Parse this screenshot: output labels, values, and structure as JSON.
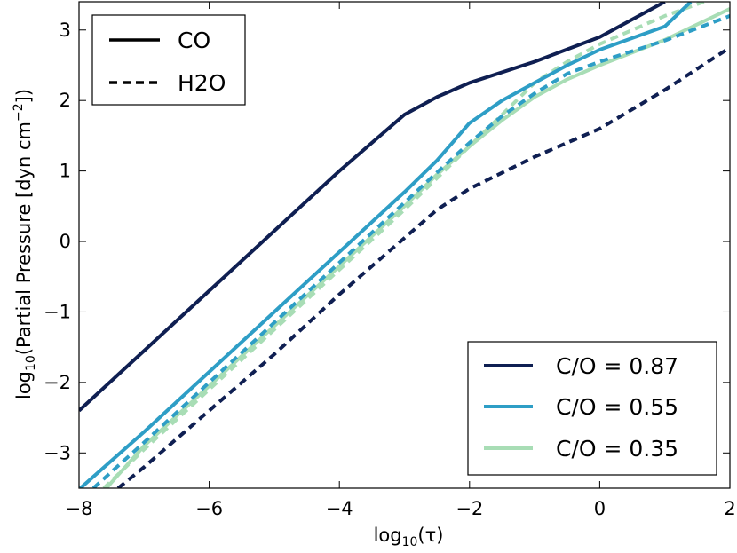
{
  "chart_data": {
    "type": "line",
    "xlabel": {
      "base": "log",
      "sub": "10",
      "arg": "(τ)"
    },
    "ylabel": {
      "pre": "log",
      "sub": "10",
      "mid": "(Partial Pressure [dyn cm",
      "sup": "−2",
      "post": "])"
    },
    "xlim": [
      -8,
      2
    ],
    "ylim": [
      -3.5,
      3.4
    ],
    "xticks": [
      -8,
      -6,
      -4,
      -2,
      0,
      2
    ],
    "xtick_labels": [
      "−8",
      "−6",
      "−4",
      "−2",
      "0",
      "2"
    ],
    "yticks": [
      -3,
      -2,
      -1,
      0,
      1,
      2,
      3
    ],
    "ytick_labels": [
      "−3",
      "−2",
      "−1",
      "0",
      "1",
      "2",
      "3"
    ],
    "species_legend": [
      {
        "label": "CO",
        "style": "solid"
      },
      {
        "label": "H2O",
        "style": "dashed"
      }
    ],
    "ratio_legend": [
      {
        "label": "C/O = 0.87",
        "color": "#0f1f52"
      },
      {
        "label": "C/O = 0.55",
        "color": "#2e9ec6"
      },
      {
        "label": "C/O = 0.35",
        "color": "#a8ddb5"
      }
    ],
    "series": [
      {
        "name": "CO, C/O = 0.35",
        "species": "CO",
        "style": "solid",
        "color": "#a8ddb5",
        "points": [
          [
            -7.58,
            -3.5
          ],
          [
            -7,
            -2.9
          ],
          [
            -6,
            -2.05
          ],
          [
            -5,
            -1.2
          ],
          [
            -4,
            -0.35
          ],
          [
            -3,
            0.5
          ],
          [
            -2.5,
            0.95
          ],
          [
            -2,
            1.35
          ],
          [
            -1.5,
            1.72
          ],
          [
            -1,
            2.05
          ],
          [
            -0.5,
            2.3
          ],
          [
            0,
            2.5
          ],
          [
            1,
            2.86
          ],
          [
            2,
            3.3
          ]
        ]
      },
      {
        "name": "H2O, C/O = 0.35",
        "species": "H2O",
        "style": "dashed",
        "color": "#a8ddb5",
        "points": [
          [
            -7.62,
            -3.5
          ],
          [
            -7,
            -2.95
          ],
          [
            -6,
            -2.1
          ],
          [
            -5,
            -1.25
          ],
          [
            -4,
            -0.4
          ],
          [
            -3,
            0.45
          ],
          [
            -2.5,
            0.9
          ],
          [
            -2,
            1.35
          ],
          [
            -1.5,
            1.8
          ],
          [
            -1,
            2.25
          ],
          [
            -0.5,
            2.55
          ],
          [
            0,
            2.8
          ],
          [
            1,
            3.2
          ],
          [
            1.6,
            3.4
          ]
        ]
      },
      {
        "name": "H2O, C/O = 0.55",
        "species": "H2O",
        "style": "dashed",
        "color": "#2e9ec6",
        "points": [
          [
            -7.78,
            -3.5
          ],
          [
            -7,
            -2.85
          ],
          [
            -6,
            -2.0
          ],
          [
            -5,
            -1.15
          ],
          [
            -4,
            -0.3
          ],
          [
            -3,
            0.55
          ],
          [
            -2.5,
            0.98
          ],
          [
            -2,
            1.4
          ],
          [
            -1.5,
            1.78
          ],
          [
            -1,
            2.1
          ],
          [
            -0.5,
            2.38
          ],
          [
            0,
            2.55
          ],
          [
            1,
            2.85
          ],
          [
            2,
            3.2
          ]
        ]
      },
      {
        "name": "CO, C/O = 0.55",
        "species": "CO",
        "style": "solid",
        "color": "#2e9ec6",
        "points": [
          [
            -7.98,
            -3.5
          ],
          [
            -7,
            -2.7
          ],
          [
            -6,
            -1.85
          ],
          [
            -5,
            -1.0
          ],
          [
            -4,
            -0.15
          ],
          [
            -3,
            0.7
          ],
          [
            -2.5,
            1.15
          ],
          [
            -2,
            1.68
          ],
          [
            -1.5,
            2.0
          ],
          [
            -1,
            2.25
          ],
          [
            -0.5,
            2.5
          ],
          [
            0,
            2.72
          ],
          [
            1,
            3.05
          ],
          [
            1.4,
            3.4
          ]
        ]
      },
      {
        "name": "H2O, C/O = 0.87",
        "species": "H2O",
        "style": "dashed",
        "color": "#0f1f52",
        "points": [
          [
            -7.4,
            -3.5
          ],
          [
            -7,
            -3.2
          ],
          [
            -6,
            -2.4
          ],
          [
            -5,
            -1.6
          ],
          [
            -4,
            -0.75
          ],
          [
            -3,
            0.05
          ],
          [
            -2.5,
            0.45
          ],
          [
            -2,
            0.75
          ],
          [
            -1,
            1.2
          ],
          [
            0,
            1.6
          ],
          [
            1,
            2.15
          ],
          [
            2,
            2.75
          ]
        ]
      },
      {
        "name": "CO, C/O = 0.87",
        "species": "CO",
        "style": "solid",
        "color": "#0f1f52",
        "points": [
          [
            -8,
            -2.4
          ],
          [
            -7,
            -1.55
          ],
          [
            -6,
            -0.7
          ],
          [
            -5,
            0.15
          ],
          [
            -4,
            1.0
          ],
          [
            -3,
            1.8
          ],
          [
            -2.5,
            2.05
          ],
          [
            -2,
            2.25
          ],
          [
            -1,
            2.55
          ],
          [
            0,
            2.9
          ],
          [
            1,
            3.4
          ]
        ]
      }
    ]
  }
}
